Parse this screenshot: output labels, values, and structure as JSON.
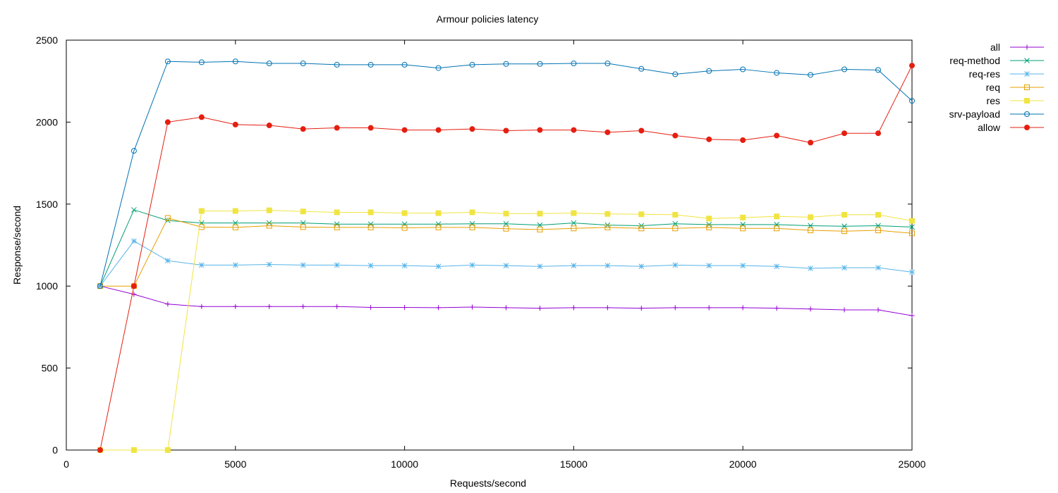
{
  "chart_data": {
    "type": "line",
    "title": "Armour policies latency",
    "xlabel": "Requests/second",
    "ylabel": "Response/second",
    "xlim": [
      0,
      25000
    ],
    "ylim": [
      0,
      2500
    ],
    "xticks": [
      0,
      5000,
      10000,
      15000,
      20000,
      25000
    ],
    "yticks": [
      0,
      500,
      1000,
      1500,
      2000,
      2500
    ],
    "grid": false,
    "legend_position": "right",
    "x": [
      1000,
      2000,
      3000,
      4000,
      5000,
      6000,
      7000,
      8000,
      9000,
      10000,
      11000,
      12000,
      13000,
      14000,
      15000,
      16000,
      17000,
      18000,
      19000,
      20000,
      21000,
      22000,
      23000,
      24000,
      25000
    ],
    "series": [
      {
        "name": "all",
        "color": "#9400d3",
        "marker": "plus",
        "values": [
          1000,
          950,
          890,
          875,
          875,
          875,
          875,
          875,
          870,
          870,
          868,
          872,
          868,
          865,
          868,
          868,
          865,
          868,
          868,
          868,
          865,
          860,
          855,
          855,
          820
        ]
      },
      {
        "name": "req-method",
        "color": "#009e73",
        "marker": "cross",
        "values": [
          1000,
          1465,
          1400,
          1385,
          1385,
          1385,
          1385,
          1378,
          1378,
          1378,
          1378,
          1380,
          1380,
          1372,
          1385,
          1372,
          1368,
          1380,
          1375,
          1375,
          1375,
          1368,
          1365,
          1368,
          1360
        ]
      },
      {
        "name": "req-res",
        "color": "#56b4e9",
        "marker": "star",
        "values": [
          1000,
          1275,
          1155,
          1128,
          1128,
          1132,
          1128,
          1128,
          1125,
          1125,
          1120,
          1128,
          1125,
          1120,
          1125,
          1125,
          1120,
          1128,
          1125,
          1125,
          1120,
          1108,
          1112,
          1112,
          1085
        ]
      },
      {
        "name": "req",
        "color": "#e69f00",
        "marker": "box",
        "values": [
          1000,
          1000,
          1415,
          1360,
          1358,
          1368,
          1360,
          1358,
          1358,
          1355,
          1358,
          1358,
          1350,
          1345,
          1352,
          1358,
          1352,
          1352,
          1358,
          1352,
          1352,
          1340,
          1335,
          1340,
          1322
        ]
      },
      {
        "name": "res",
        "color": "#f0e442",
        "marker": "filled-box",
        "values": [
          0,
          0,
          0,
          1458,
          1458,
          1462,
          1455,
          1450,
          1450,
          1445,
          1445,
          1450,
          1442,
          1442,
          1445,
          1440,
          1438,
          1435,
          1412,
          1418,
          1425,
          1420,
          1435,
          1435,
          1398
        ]
      },
      {
        "name": "srv-payload",
        "color": "#0072b2",
        "marker": "circle",
        "values": [
          1000,
          1825,
          2370,
          2365,
          2370,
          2358,
          2358,
          2350,
          2350,
          2350,
          2330,
          2350,
          2355,
          2355,
          2358,
          2358,
          2325,
          2292,
          2312,
          2322,
          2300,
          2288,
          2322,
          2318,
          2130
        ]
      },
      {
        "name": "allow",
        "color": "#e51e10",
        "marker": "filled-circle",
        "values": [
          0,
          1000,
          2000,
          2030,
          1985,
          1980,
          1958,
          1965,
          1965,
          1952,
          1952,
          1958,
          1948,
          1952,
          1952,
          1938,
          1948,
          1918,
          1895,
          1890,
          1918,
          1875,
          1932,
          1932,
          2345
        ]
      }
    ]
  }
}
